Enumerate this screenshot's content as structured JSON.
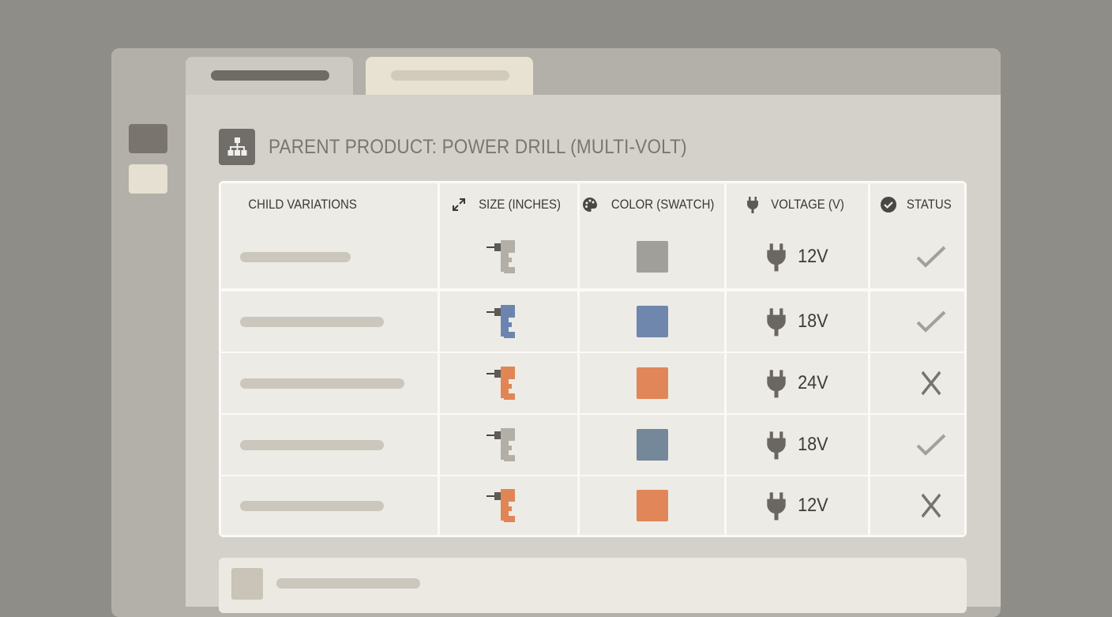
{
  "title": "PARENT PRODUCT: POWER DRILL (MULTI-VOLT)",
  "columns": [
    {
      "label": "CHILD VARIATIONS",
      "icon": ""
    },
    {
      "label": "SIZE (INCHES)",
      "icon": "resize-arrows-icon"
    },
    {
      "label": "COLOR (SWATCH)",
      "icon": "palette-icon"
    },
    {
      "label": "VOLTAGE (V)",
      "icon": "plug-icon"
    },
    {
      "label": "STATUS",
      "icon": "check-circle-icon"
    }
  ],
  "rows": [
    {
      "drill_color": "#b3afa7",
      "swatch": "#a19f9a",
      "voltage": "12V",
      "status": "check"
    },
    {
      "drill_color": "#6b85b0",
      "swatch": "#6f87ad",
      "voltage": "18V",
      "status": "check"
    },
    {
      "drill_color": "#e08656",
      "swatch": "#e08658",
      "voltage": "24V",
      "status": "cross"
    },
    {
      "drill_color": "#b3afa7",
      "swatch": "#74889a",
      "voltage": "18V",
      "status": "check"
    },
    {
      "drill_color": "#e08656",
      "swatch": "#e08658",
      "voltage": "12V",
      "status": "cross"
    }
  ]
}
